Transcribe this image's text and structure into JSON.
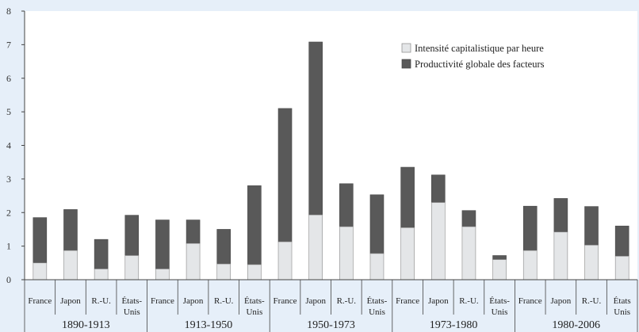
{
  "chart_data": {
    "type": "bar",
    "stacked": true,
    "ylim": [
      0,
      8
    ],
    "yticks": [
      0,
      1,
      2,
      3,
      4,
      5,
      6,
      7,
      8
    ],
    "grid": false,
    "legend_position": "top-right",
    "series": [
      {
        "name": "Intensité capitalistique par heure",
        "color": "#e4e6e8"
      },
      {
        "name": "Productivité globale des facteurs",
        "color": "#595959"
      }
    ],
    "groups": [
      {
        "period": "1890-1913",
        "bars": [
          {
            "label": [
              "France"
            ],
            "capital": 0.5,
            "tfp": 1.35
          },
          {
            "label": [
              "Japon"
            ],
            "capital": 0.87,
            "tfp": 1.22
          },
          {
            "label": [
              "R.-U."
            ],
            "capital": 0.32,
            "tfp": 0.88
          },
          {
            "label": [
              "États-",
              "Unis"
            ],
            "capital": 0.72,
            "tfp": 1.2
          }
        ]
      },
      {
        "period": "1913-1950",
        "bars": [
          {
            "label": [
              "France"
            ],
            "capital": 0.32,
            "tfp": 1.46
          },
          {
            "label": [
              "Japon"
            ],
            "capital": 1.08,
            "tfp": 0.7
          },
          {
            "label": [
              "R.-U."
            ],
            "capital": 0.47,
            "tfp": 1.03
          },
          {
            "label": [
              "États-",
              "Unis"
            ],
            "capital": 0.45,
            "tfp": 2.35
          }
        ]
      },
      {
        "period": "1950-1973",
        "bars": [
          {
            "label": [
              "France"
            ],
            "capital": 1.13,
            "tfp": 3.97
          },
          {
            "label": [
              "Japon"
            ],
            "capital": 1.93,
            "tfp": 5.15
          },
          {
            "label": [
              "R.-U."
            ],
            "capital": 1.58,
            "tfp": 1.28
          },
          {
            "label": [
              "États-",
              "Unis"
            ],
            "capital": 0.78,
            "tfp": 1.75
          }
        ]
      },
      {
        "period": "1973-1980",
        "bars": [
          {
            "label": [
              "France"
            ],
            "capital": 1.55,
            "tfp": 1.8
          },
          {
            "label": [
              "Japon"
            ],
            "capital": 2.3,
            "tfp": 0.82
          },
          {
            "label": [
              "R.-U."
            ],
            "capital": 1.58,
            "tfp": 0.48
          },
          {
            "label": [
              "États-",
              "Unis"
            ],
            "capital": 0.6,
            "tfp": 0.12
          }
        ]
      },
      {
        "period": "1980-2006",
        "bars": [
          {
            "label": [
              "France"
            ],
            "capital": 0.87,
            "tfp": 1.32
          },
          {
            "label": [
              "Japon"
            ],
            "capital": 1.42,
            "tfp": 1.0
          },
          {
            "label": [
              "R.-U."
            ],
            "capital": 1.03,
            "tfp": 1.15
          },
          {
            "label": [
              "États",
              "Unis"
            ],
            "capital": 0.7,
            "tfp": 0.9
          }
        ]
      }
    ]
  }
}
